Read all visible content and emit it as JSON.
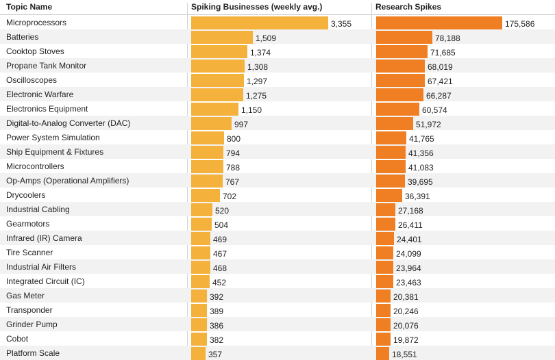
{
  "chart_data": {
    "type": "bar",
    "orientation": "horizontal",
    "columns": {
      "topic": "Topic Name",
      "businesses": "Spiking Businesses (weekly avg.)",
      "research": "Research Spikes"
    },
    "categories": [
      "Microprocessors",
      "Batteries",
      "Cooktop Stoves",
      "Propane Tank Monitor",
      "Oscilloscopes",
      "Electronic Warfare",
      "Electronics Equipment",
      "Digital-to-Analog Converter (DAC)",
      "Power System Simulation",
      "Ship Equipment & Fixtures",
      "Microcontrollers",
      "Op-Amps (Operational Amplifiers)",
      "Drycoolers",
      "Industrial Cabling",
      "Gearmotors",
      "Infrared (IR) Camera",
      "Tire Scanner",
      "Industrial Air Filters",
      "Integrated Circuit (IC)",
      "Gas Meter",
      "Transponder",
      "Grinder Pump",
      "Cobot",
      "Platform Scale"
    ],
    "series": [
      {
        "name": "Spiking Businesses (weekly avg.)",
        "color": "#f4b13b",
        "values": [
          3355,
          1509,
          1374,
          1308,
          1297,
          1275,
          1150,
          997,
          800,
          794,
          788,
          767,
          702,
          520,
          504,
          469,
          467,
          468,
          452,
          392,
          389,
          386,
          382,
          357
        ],
        "labels": [
          "3,355",
          "1,509",
          "1,374",
          "1,308",
          "1,297",
          "1,275",
          "1,150",
          "997",
          "800",
          "794",
          "788",
          "767",
          "702",
          "520",
          "504",
          "469",
          "467",
          "468",
          "452",
          "392",
          "389",
          "386",
          "382",
          "357"
        ]
      },
      {
        "name": "Research Spikes",
        "color": "#f07e22",
        "values": [
          175586,
          78188,
          71685,
          68019,
          67421,
          66287,
          60574,
          51972,
          41765,
          41356,
          41083,
          39695,
          36391,
          27168,
          26411,
          24401,
          24099,
          23964,
          23463,
          20381,
          20246,
          20076,
          19872,
          18551
        ],
        "labels": [
          "175,586",
          "78,188",
          "71,685",
          "68,019",
          "67,421",
          "66,287",
          "60,574",
          "51,972",
          "41,765",
          "41,356",
          "41,083",
          "39,695",
          "36,391",
          "27,168",
          "26,411",
          "24,401",
          "24,099",
          "23,964",
          "23,463",
          "20,381",
          "20,246",
          "20,076",
          "19,872",
          "18,551"
        ]
      }
    ]
  }
}
